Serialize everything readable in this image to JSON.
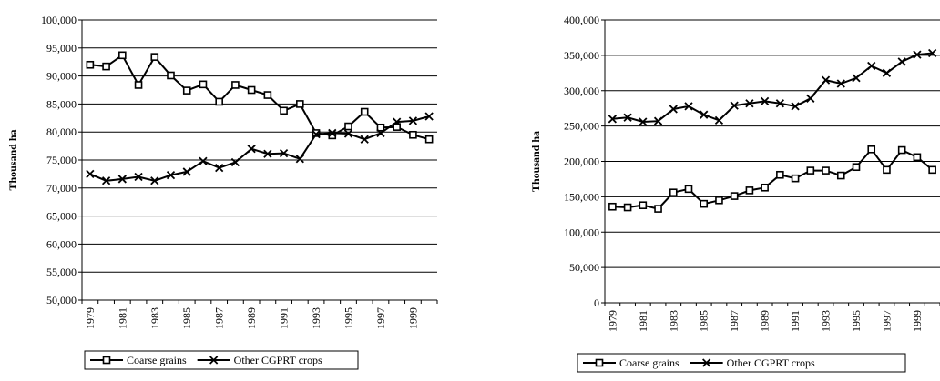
{
  "chart_data": [
    {
      "type": "line",
      "ylabel": "Thousand ha",
      "ylim": [
        50000,
        100000
      ],
      "yticks": [
        50000,
        55000,
        60000,
        65000,
        70000,
        75000,
        80000,
        85000,
        90000,
        95000,
        100000
      ],
      "ytick_labels": [
        "50,000",
        "55,000",
        "60,000",
        "65,000",
        "70,000",
        "75,000",
        "80,000",
        "85,000",
        "90,000",
        "95,000",
        "100,000"
      ],
      "x": [
        1979,
        1980,
        1981,
        1982,
        1983,
        1984,
        1985,
        1986,
        1987,
        1988,
        1989,
        1990,
        1991,
        1992,
        1993,
        1994,
        1995,
        1996,
        1997,
        1998,
        1999,
        2000
      ],
      "xtick_labels": [
        "1979",
        "1981",
        "1983",
        "1985",
        "1987",
        "1989",
        "1991",
        "1993",
        "1995",
        "1997",
        "1999"
      ],
      "grid": "horizontal",
      "legend_position": "bottom",
      "series": [
        {
          "name": "Coarse grains",
          "marker": "square",
          "values": [
            92000,
            91700,
            93700,
            88400,
            93400,
            90100,
            87400,
            88500,
            85400,
            88400,
            87500,
            86600,
            83800,
            85000,
            79800,
            79400,
            81000,
            83600,
            80800,
            80900,
            79500,
            78700
          ]
        },
        {
          "name": "Other CGPRT crops",
          "marker": "x",
          "values": [
            72500,
            71300,
            71600,
            72000,
            71300,
            72300,
            72900,
            74800,
            73600,
            74600,
            77000,
            76100,
            76200,
            75200,
            79600,
            79800,
            79700,
            78700,
            79800,
            81800,
            82000,
            82800
          ]
        }
      ]
    },
    {
      "type": "line",
      "ylabel": "Thousand ha",
      "ylim": [
        0,
        400000
      ],
      "yticks": [
        0,
        50000,
        100000,
        150000,
        200000,
        250000,
        300000,
        350000,
        400000
      ],
      "ytick_labels": [
        "0",
        "50,000",
        "100,000",
        "150,000",
        "200,000",
        "250,000",
        "300,000",
        "350,000",
        "400,000"
      ],
      "x": [
        1979,
        1980,
        1981,
        1982,
        1983,
        1984,
        1985,
        1986,
        1987,
        1988,
        1989,
        1990,
        1991,
        1992,
        1993,
        1994,
        1995,
        1996,
        1997,
        1998,
        1999,
        2000
      ],
      "xtick_labels": [
        "1979",
        "1981",
        "1983",
        "1985",
        "1987",
        "1989",
        "1991",
        "1993",
        "1995",
        "1997",
        "1999"
      ],
      "grid": "horizontal",
      "legend_position": "bottom",
      "series": [
        {
          "name": "Coarse grains",
          "marker": "square",
          "values": [
            136000,
            135000,
            138000,
            133000,
            156000,
            161000,
            140000,
            145000,
            151000,
            159000,
            163000,
            181000,
            176000,
            187000,
            187000,
            180000,
            192000,
            217000,
            188000,
            216000,
            206000,
            188000
          ]
        },
        {
          "name": "Other CGPRT crops",
          "marker": "x",
          "values": [
            260000,
            262000,
            256000,
            257000,
            274000,
            278000,
            266000,
            258000,
            279000,
            282000,
            285000,
            282000,
            278000,
            289000,
            315000,
            310000,
            318000,
            335000,
            325000,
            341000,
            351000,
            353000
          ]
        }
      ]
    }
  ]
}
